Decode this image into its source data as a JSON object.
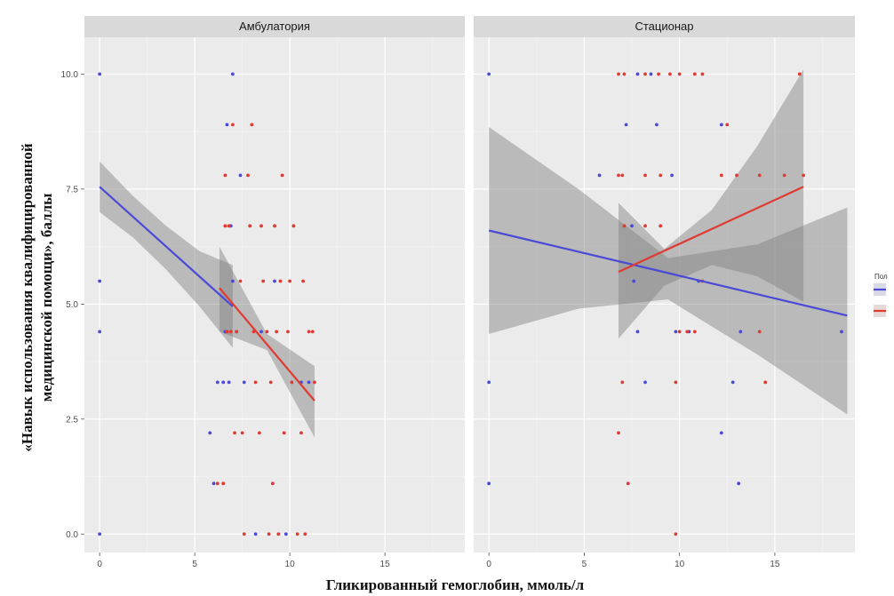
{
  "chart_data": {
    "type": "scatter",
    "xlabel": "Гликированный гемоглобин, ммоль/л",
    "ylabel_line1": "«Навык использования квалифицированной",
    "ylabel_line2": "медицинской помощи», баллы",
    "xlim": [
      -0.8,
      19.2
    ],
    "ylim": [
      -0.4,
      10.8
    ],
    "x_ticks": [
      0,
      5,
      10,
      15
    ],
    "y_ticks": [
      0.0,
      2.5,
      5.0,
      7.5,
      10.0
    ],
    "x_tick_labels": [
      "0",
      "5",
      "10",
      "15"
    ],
    "y_tick_labels": [
      "0.0",
      "2.5",
      "5.0",
      "7.5",
      "10.0"
    ],
    "legend": {
      "title": "Пол",
      "placement": "right"
    },
    "colors": {
      "blue": "#4a4ad6",
      "red": "#e03b32",
      "panel_bg": "#ebebeb",
      "strip_bg": "#d9d9d9",
      "grid": "#ffffff",
      "band": "#7f7f7f"
    },
    "panels": [
      {
        "title": "Амбулатория",
        "points_blue": [
          [
            0,
            10
          ],
          [
            0,
            5.5
          ],
          [
            0,
            4.4
          ],
          [
            0,
            0
          ],
          [
            5.8,
            2.2
          ],
          [
            6.0,
            1.1
          ],
          [
            6.2,
            3.3
          ],
          [
            6.5,
            3.3
          ],
          [
            6.8,
            3.3
          ],
          [
            7.0,
            10
          ],
          [
            7.0,
            5.5
          ],
          [
            7.2,
            4.4
          ],
          [
            6.9,
            6.7
          ],
          [
            6.7,
            8.9
          ],
          [
            6.6,
            4.4
          ],
          [
            7.4,
            7.8
          ],
          [
            8.2,
            0
          ],
          [
            7.6,
            3.3
          ],
          [
            8.5,
            4.4
          ],
          [
            9.2,
            5.5
          ],
          [
            11.0,
            3.3
          ],
          [
            10.6,
            3.3
          ],
          [
            9.8,
            0
          ]
        ],
        "points_red": [
          [
            6.2,
            1.1
          ],
          [
            6.5,
            1.1
          ],
          [
            6.6,
            6.7
          ],
          [
            6.8,
            6.7
          ],
          [
            7.0,
            8.9
          ],
          [
            6.6,
            7.8
          ],
          [
            6.7,
            4.4
          ],
          [
            6.9,
            4.4
          ],
          [
            7.2,
            4.4
          ],
          [
            7.4,
            5.5
          ],
          [
            7.1,
            2.2
          ],
          [
            7.5,
            2.2
          ],
          [
            7.8,
            7.8
          ],
          [
            8.0,
            8.9
          ],
          [
            7.9,
            6.7
          ],
          [
            8.1,
            4.4
          ],
          [
            8.2,
            3.3
          ],
          [
            8.4,
            2.2
          ],
          [
            8.5,
            6.7
          ],
          [
            8.6,
            5.5
          ],
          [
            8.8,
            4.4
          ],
          [
            9.0,
            3.3
          ],
          [
            9.1,
            1.1
          ],
          [
            9.2,
            6.7
          ],
          [
            9.3,
            4.4
          ],
          [
            9.5,
            5.5
          ],
          [
            9.6,
            7.8
          ],
          [
            9.7,
            2.2
          ],
          [
            9.9,
            4.4
          ],
          [
            10.0,
            5.5
          ],
          [
            10.1,
            3.3
          ],
          [
            10.2,
            6.7
          ],
          [
            10.4,
            0
          ],
          [
            10.6,
            2.2
          ],
          [
            10.7,
            5.5
          ],
          [
            10.8,
            0
          ],
          [
            11.0,
            4.4
          ],
          [
            11.2,
            4.4
          ],
          [
            11.3,
            3.3
          ],
          [
            8.9,
            0
          ],
          [
            9.4,
            0
          ],
          [
            7.6,
            0
          ]
        ],
        "line_blue": {
          "x": [
            0,
            7.0
          ],
          "y": [
            7.55,
            4.95
          ]
        },
        "line_red": {
          "x": [
            6.3,
            11.3
          ],
          "y": [
            5.35,
            2.9
          ]
        },
        "band_blue": {
          "x": [
            0,
            1.75,
            3.5,
            5.25,
            7.0
          ],
          "lower": [
            7.0,
            6.45,
            5.75,
            4.95,
            4.05
          ],
          "upper": [
            8.1,
            7.35,
            6.7,
            6.15,
            5.85
          ]
        },
        "band_red": {
          "x": [
            6.3,
            8.8,
            11.3
          ],
          "lower": [
            4.4,
            4.0,
            2.1
          ],
          "upper": [
            6.25,
            4.35,
            3.65
          ]
        }
      },
      {
        "title": "Стационар",
        "points_blue": [
          [
            0,
            10
          ],
          [
            0,
            3.3
          ],
          [
            0,
            1.1
          ],
          [
            7.8,
            10
          ],
          [
            8.5,
            10
          ],
          [
            8.8,
            8.9
          ],
          [
            7.2,
            8.9
          ],
          [
            5.8,
            7.8
          ],
          [
            7.5,
            6.7
          ],
          [
            7.6,
            5.5
          ],
          [
            7.8,
            4.4
          ],
          [
            8.2,
            3.3
          ],
          [
            9.8,
            4.4
          ],
          [
            10.5,
            4.4
          ],
          [
            11.0,
            5.5
          ],
          [
            12.2,
            8.9
          ],
          [
            12.2,
            2.2
          ],
          [
            12.8,
            3.3
          ],
          [
            13.1,
            1.1
          ],
          [
            13.2,
            4.4
          ],
          [
            18.5,
            4.4
          ],
          [
            9.6,
            7.8
          ]
        ],
        "points_red": [
          [
            6.8,
            10
          ],
          [
            7.1,
            10
          ],
          [
            8.2,
            10
          ],
          [
            8.9,
            10
          ],
          [
            9.5,
            10
          ],
          [
            10.0,
            10
          ],
          [
            10.8,
            10
          ],
          [
            11.2,
            10
          ],
          [
            12.5,
            8.9
          ],
          [
            6.8,
            7.8
          ],
          [
            7.0,
            7.8
          ],
          [
            8.2,
            7.8
          ],
          [
            9.0,
            7.8
          ],
          [
            12.2,
            7.8
          ],
          [
            13.0,
            7.8
          ],
          [
            14.2,
            7.8
          ],
          [
            15.5,
            7.8
          ],
          [
            16.5,
            7.8
          ],
          [
            7.1,
            6.7
          ],
          [
            8.2,
            6.7
          ],
          [
            9.0,
            6.7
          ],
          [
            11.2,
            5.5
          ],
          [
            10.0,
            4.4
          ],
          [
            10.4,
            4.4
          ],
          [
            10.8,
            4.4
          ],
          [
            14.2,
            4.4
          ],
          [
            7.0,
            3.3
          ],
          [
            9.8,
            3.3
          ],
          [
            6.8,
            2.2
          ],
          [
            7.3,
            1.1
          ],
          [
            9.8,
            0
          ],
          [
            14.5,
            3.3
          ],
          [
            16.3,
            10
          ]
        ],
        "line_blue": {
          "x": [
            0,
            18.8
          ],
          "y": [
            6.6,
            4.75
          ]
        },
        "line_red": {
          "x": [
            6.8,
            16.5
          ],
          "y": [
            5.7,
            7.55
          ]
        },
        "band_blue": {
          "x": [
            0,
            4.7,
            9.4,
            14.1,
            18.8
          ],
          "lower": [
            4.35,
            4.9,
            5.1,
            3.9,
            2.6
          ],
          "upper": [
            8.85,
            7.5,
            6.0,
            6.3,
            7.1
          ]
        },
        "band_red": {
          "x": [
            6.8,
            9.2,
            11.7,
            14.1,
            16.5
          ],
          "lower": [
            4.25,
            5.4,
            5.85,
            5.6,
            5.05
          ],
          "upper": [
            7.2,
            6.2,
            7.05,
            8.45,
            10.1
          ]
        }
      }
    ]
  }
}
